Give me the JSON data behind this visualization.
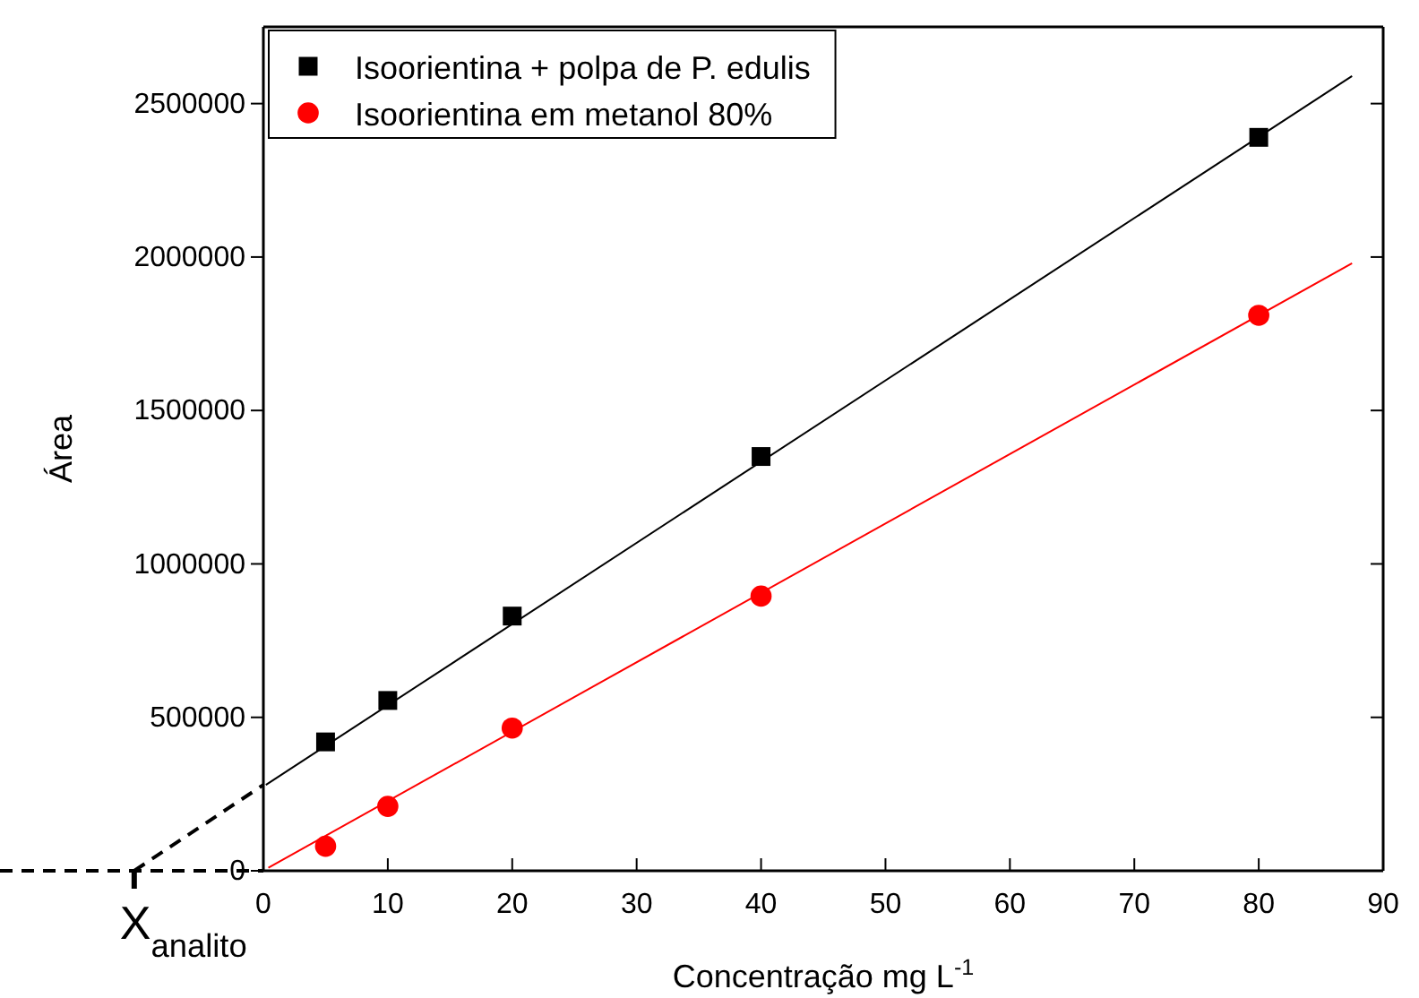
{
  "chart_data": {
    "type": "scatter",
    "xlabel": "Concentração mg L$^{-1}$",
    "ylabel": "Área",
    "x": [
      5,
      10,
      20,
      40,
      80
    ],
    "series": [
      {
        "name": "Isoorientina + polpa de P. edulis",
        "color": "#000000",
        "marker": "square",
        "values": [
          420000,
          555000,
          830000,
          1350000,
          2390000
        ]
      },
      {
        "name": "Isoorientina em metanol 80%",
        "color": "#ff0000",
        "marker": "circle",
        "values": [
          80000,
          210000,
          465000,
          895000,
          1810000
        ]
      },
      {
        "type": "line",
        "color": "#000000",
        "x": [
          0.2,
          87.5
        ],
        "values": [
          280000,
          2590000
        ]
      },
      {
        "type": "line",
        "color": "#ff0000",
        "x": [
          0.4,
          87.5
        ],
        "values": [
          10000,
          1980000
        ]
      }
    ],
    "xlim": [
      0,
      90
    ],
    "xticks": [
      0,
      10,
      20,
      30,
      40,
      50,
      60,
      70,
      80,
      90
    ],
    "ylim": [
      0,
      2750000
    ],
    "yticks": [
      0,
      500000,
      1000000,
      1500000,
      2000000,
      2500000
    ],
    "annotations": [
      "X$_{analito}$"
    ],
    "legend": "top left",
    "grid": false
  }
}
